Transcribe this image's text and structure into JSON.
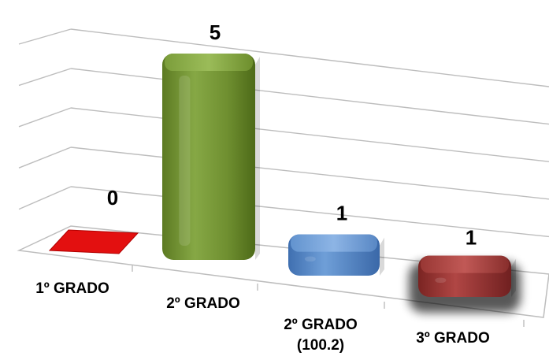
{
  "chart_data": {
    "type": "bar",
    "title": "",
    "xlabel": "",
    "ylabel": "",
    "categories": [
      [
        "1º GRADO"
      ],
      [
        "2º GRADO"
      ],
      [
        "2º GRADO",
        "(100.2)"
      ],
      [
        "3º GRADO"
      ]
    ],
    "values": [
      0,
      5,
      1,
      1
    ],
    "ylim": [
      0,
      5
    ],
    "grid": true,
    "legend": "none",
    "colors": [
      "#c00000",
      "#77933c",
      "#4f81bd",
      "#953735"
    ]
  }
}
